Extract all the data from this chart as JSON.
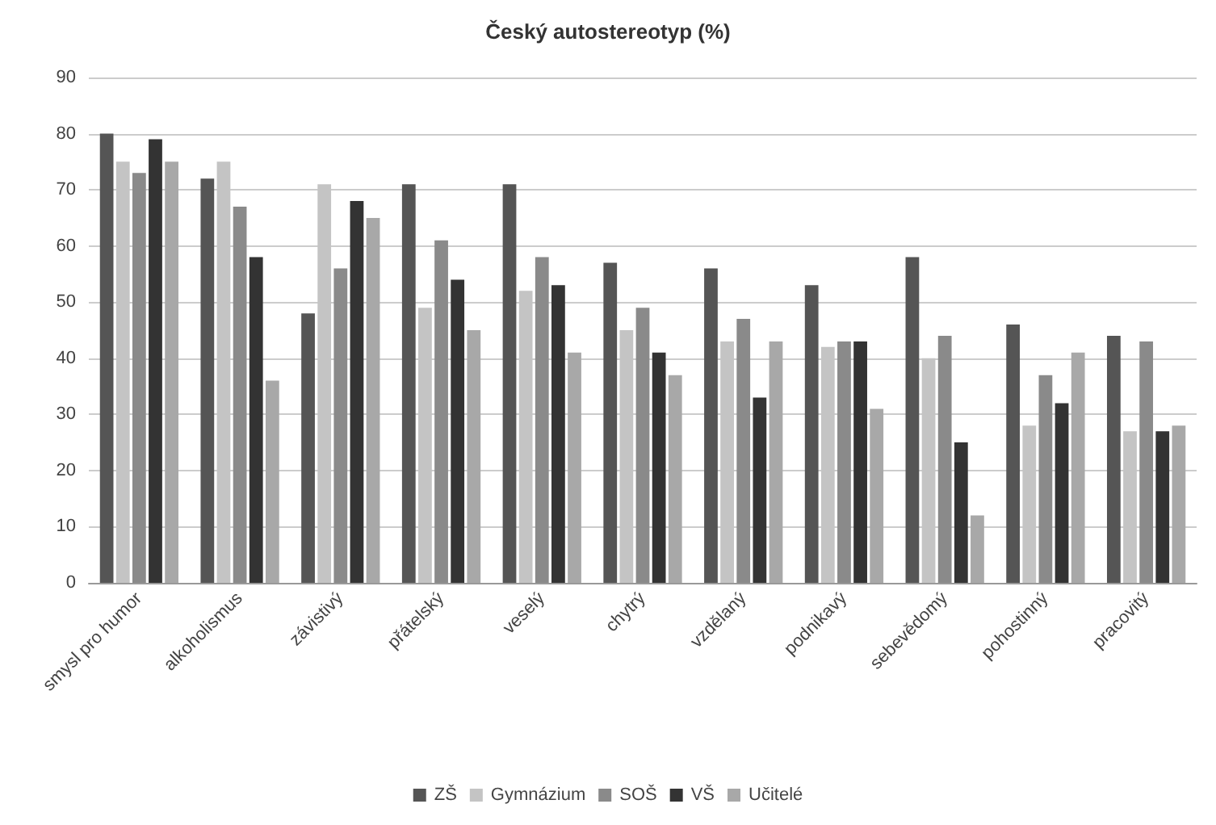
{
  "chart_data": {
    "type": "bar",
    "title": "Český autostereotyp (%)",
    "categories": [
      "smysl pro humor",
      "alkoholismus",
      "závistivý",
      "přátelský",
      "veselý",
      "chytrý",
      "vzdělaný",
      "podnikavý",
      "sebevědomý",
      "pohostinný",
      "pracovitý"
    ],
    "series": [
      {
        "name": "ZŠ",
        "color": "#555555",
        "values": [
          80,
          72,
          48,
          71,
          71,
          57,
          56,
          53,
          58,
          46,
          44
        ]
      },
      {
        "name": "Gymnázium",
        "color": "#c4c4c4",
        "values": [
          75,
          75,
          71,
          49,
          52,
          45,
          43,
          42,
          40,
          28,
          27
        ]
      },
      {
        "name": "SOŠ",
        "color": "#8a8a8a",
        "values": [
          73,
          67,
          56,
          61,
          58,
          49,
          47,
          43,
          44,
          37,
          43
        ]
      },
      {
        "name": "VŠ",
        "color": "#333333",
        "values": [
          79,
          58,
          68,
          54,
          53,
          41,
          33,
          43,
          25,
          32,
          27
        ]
      },
      {
        "name": "Učitelé",
        "color": "#a8a8a8",
        "values": [
          75,
          36,
          65,
          45,
          41,
          37,
          43,
          31,
          12,
          41,
          28
        ]
      }
    ],
    "ylim": [
      0,
      90
    ],
    "yticks": [
      0,
      10,
      20,
      30,
      40,
      50,
      60,
      70,
      80,
      90
    ],
    "grid": "y",
    "legend": "bottom"
  }
}
